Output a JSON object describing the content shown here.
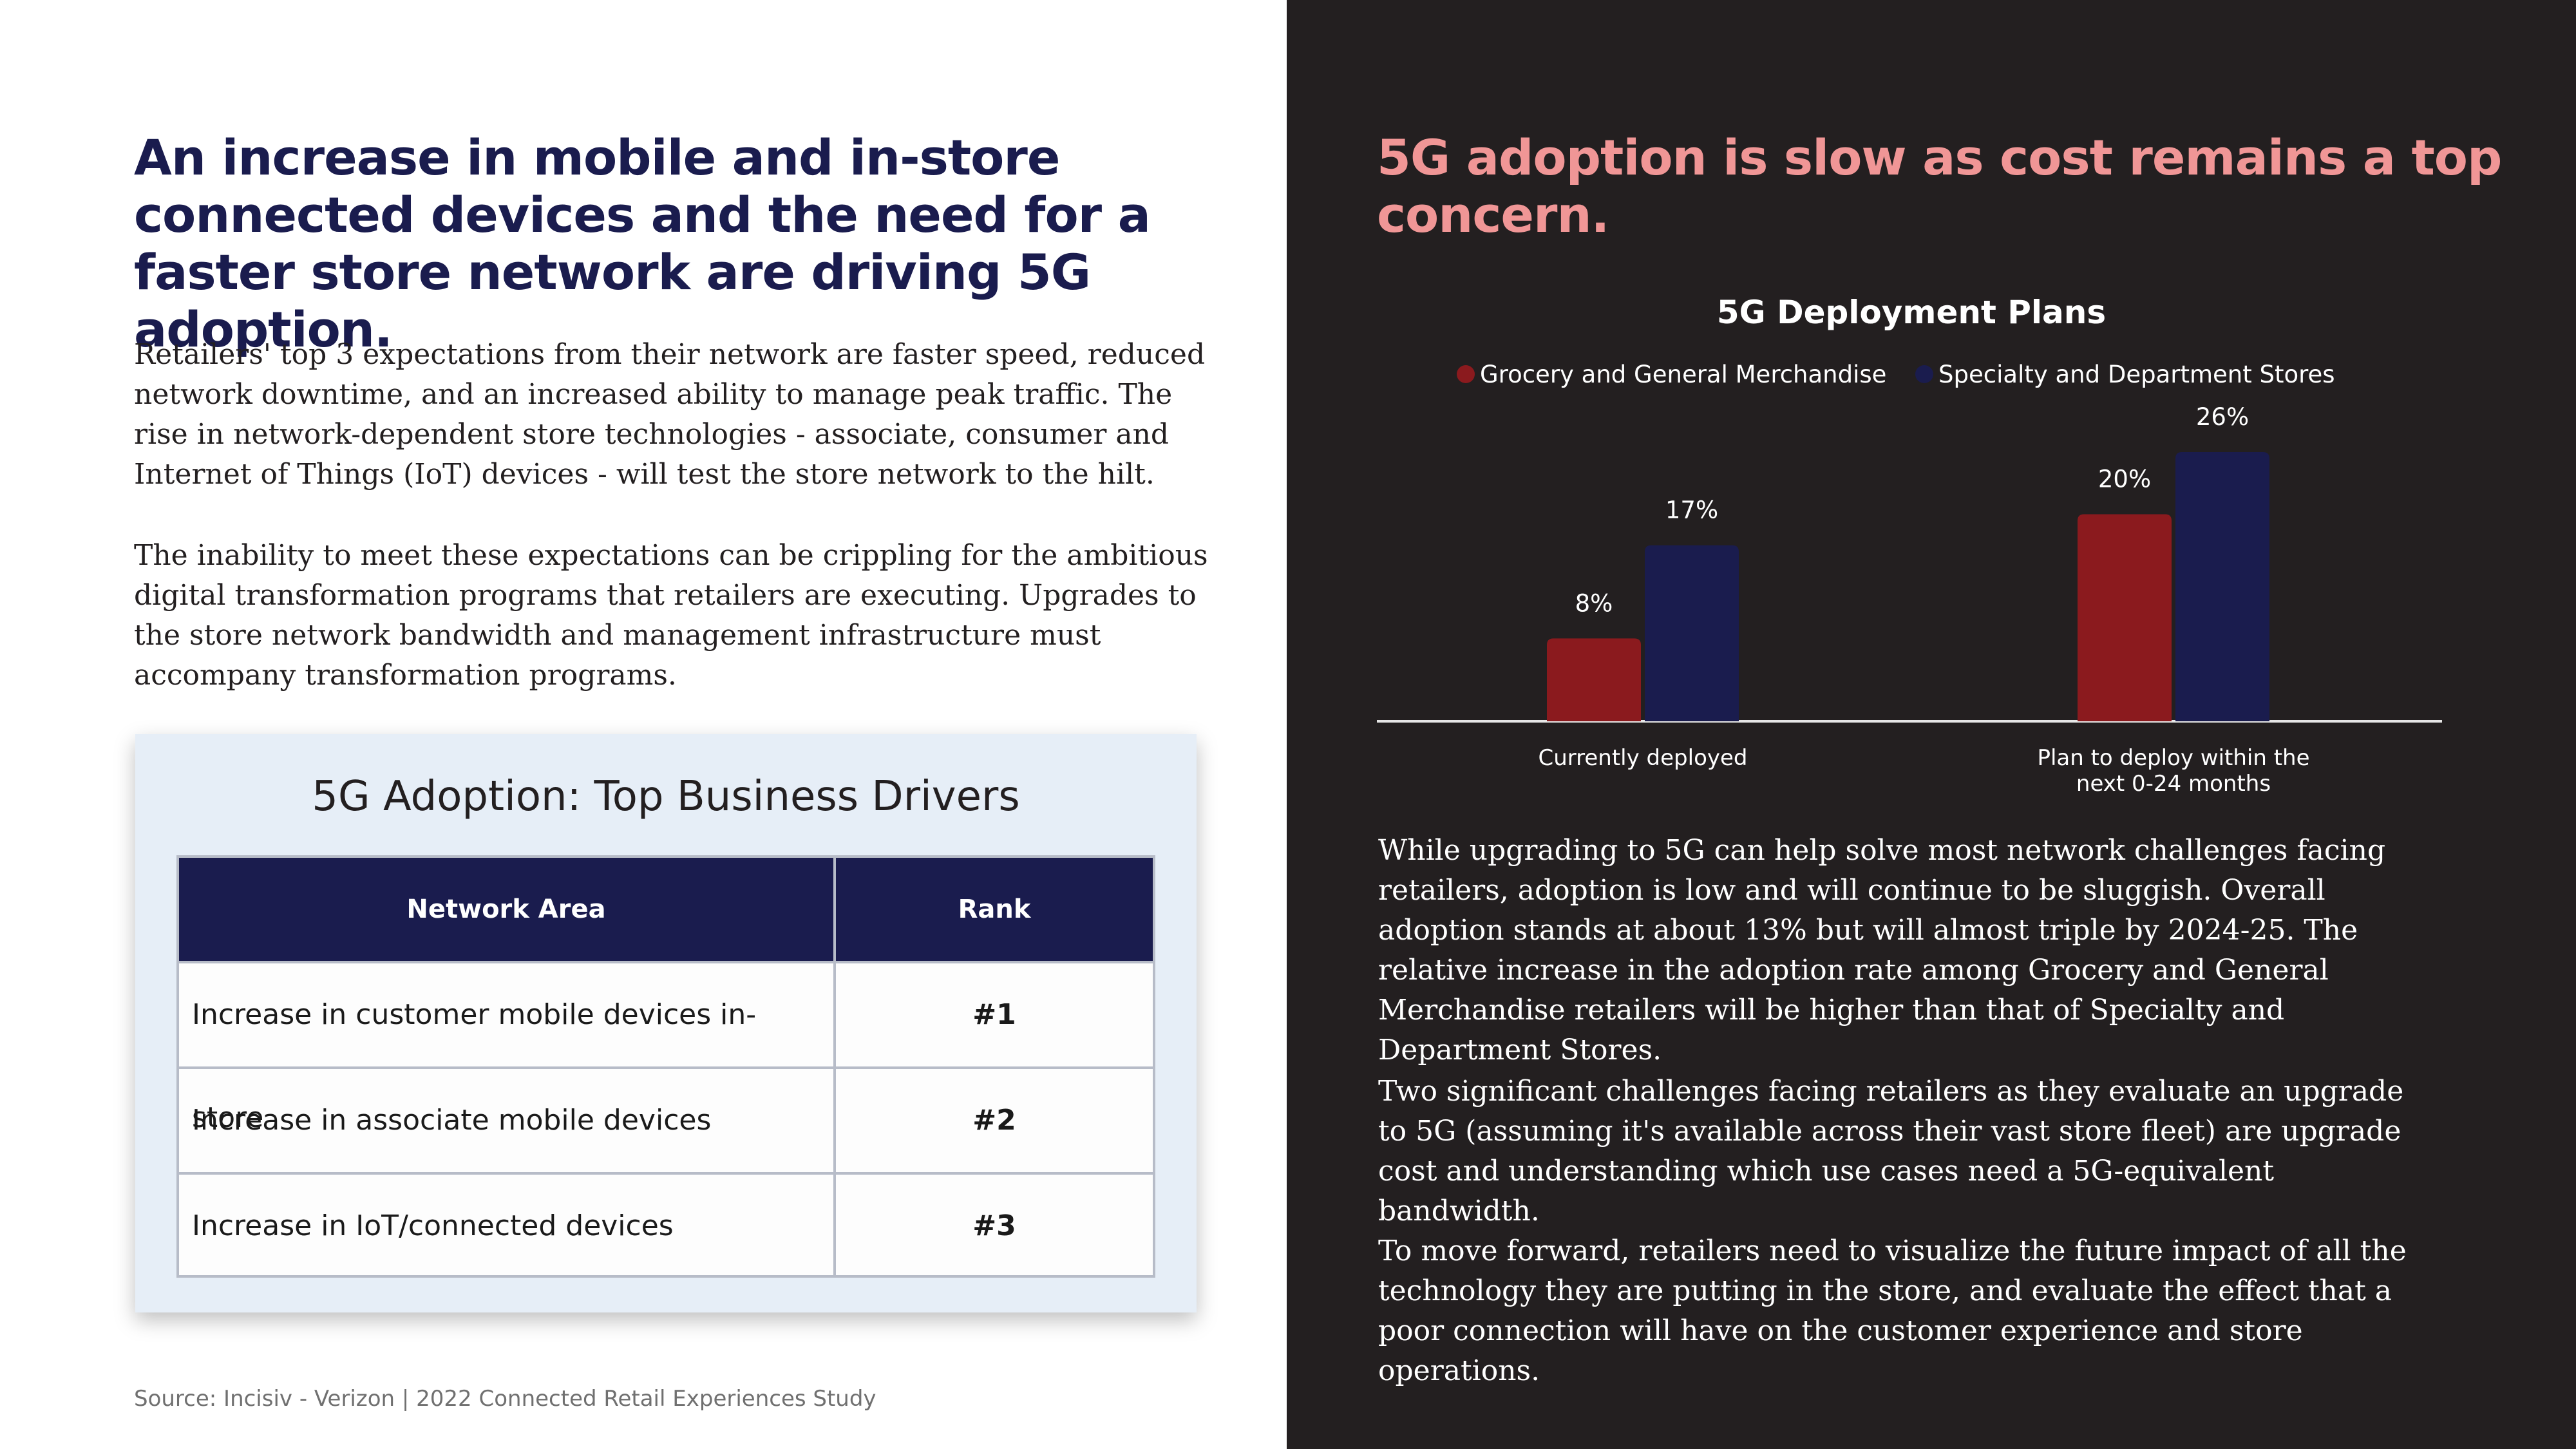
{
  "left": {
    "heading": "An increase in mobile and in-store connected devices and the need for a faster store network are driving 5G adoption.",
    "para1": "Retailers' top 3 expectations from their network are faster speed, reduced network downtime, and an increased ability to manage peak traffic. The rise in network-dependent store technologies - associate, consumer and Internet of Things (IoT) devices - will test the store network to the hilt.",
    "para2": "The inability to meet these expectations can be crippling for the ambitious digital transformation programs that retailers are executing. Upgrades to the store network bandwidth and management infrastructure must accompany transformation programs.",
    "table": {
      "title": "5G Adoption: Top Business Drivers",
      "headers": [
        "Network Area",
        "Rank"
      ],
      "rows": [
        {
          "area": "Increase in customer mobile devices in-store",
          "rank": "#1"
        },
        {
          "area": "Increase in associate mobile devices",
          "rank": "#2"
        },
        {
          "area": "Increase in IoT/connected devices",
          "rank": "#3"
        }
      ]
    },
    "source": "Source: Incisiv - Verizon | 2022 Connected Retail Experiences Study"
  },
  "right": {
    "heading": "5G adoption is slow as cost remains a top concern.",
    "para1": "While upgrading to 5G can help solve most network challenges facing retailers, adoption is low and will continue to be sluggish. Overall adoption stands at about 13% but will almost triple by 2024-25. The relative increase in the adoption rate among Grocery and General Merchandise retailers will be higher than that of Specialty and Department Stores.",
    "para2": "Two significant challenges facing retailers as they evaluate an upgrade to 5G (assuming it's available across their vast store fleet) are upgrade cost and understanding which use cases need a 5G-equivalent bandwidth.",
    "para3": "To move forward, retailers need to visualize the future impact of all the technology they are putting in the store, and evaluate the effect that a poor connection will have on the customer experience and store operations."
  },
  "colors": {
    "navy": "#1a1c4e",
    "grocery_red": "#8b1a1e",
    "specialty_navy": "#1a1c4e",
    "heading_pink": "#f09696",
    "dark_bg": "#231f20"
  },
  "chart_data": {
    "type": "bar",
    "title": "5G Deployment Plans",
    "categories": [
      "Currently deployed",
      "Plan to deploy within the next 0-24 months"
    ],
    "category_lines": [
      [
        "Currently deployed"
      ],
      [
        "Plan to deploy within the",
        "next 0-24 months"
      ]
    ],
    "series": [
      {
        "name": "Grocery and General Merchandise",
        "values": [
          8,
          20
        ],
        "labels": [
          "8%",
          "20%"
        ],
        "color": "#8b1a1e"
      },
      {
        "name": "Specialty and Department Stores",
        "values": [
          17,
          26
        ],
        "labels": [
          "17%",
          "26%"
        ],
        "color": "#1a1c4e"
      }
    ],
    "ylim": [
      0,
      26
    ],
    "legend": "top",
    "grid": false
  }
}
